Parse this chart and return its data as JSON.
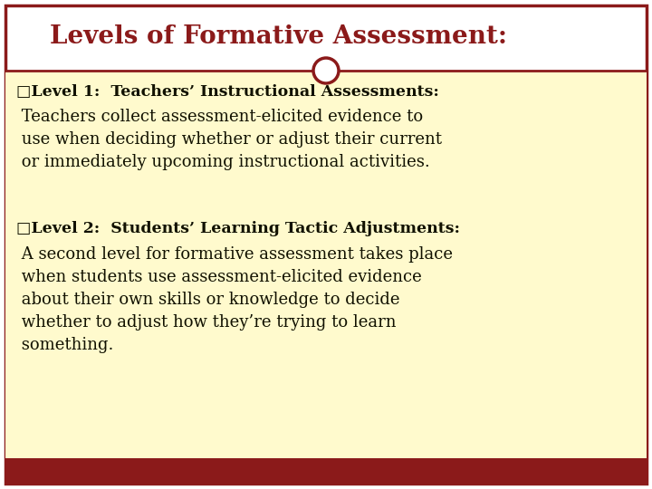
{
  "title": "Levels of Formative Assessment:",
  "title_color": "#8B1A1A",
  "background_color": "#FFFFFF",
  "content_bg_color": "#FFFACD",
  "border_color": "#8B1A1A",
  "bottom_bar_color": "#8B1A1A",
  "circle_color": "#8B1A1A",
  "text_color": "#111100",
  "level1_header": "□Level 1:  Teachers’ Instructional Assessments:",
  "level1_body": " Teachers collect assessment-elicited evidence to\n use when deciding whether or adjust their current\n or immediately upcoming instructional activities.",
  "level2_header": "□Level 2:  Students’ Learning Tactic Adjustments:",
  "level2_body": " A second level for formative assessment takes place\n when students use assessment-elicited evidence\n about their own skills or knowledge to decide\n whether to adjust how they’re trying to learn\n something.",
  "header_fontsize": 12.5,
  "body_fontsize": 13.0,
  "title_fontsize": 20,
  "fig_width": 7.2,
  "fig_height": 5.4,
  "dpi": 100
}
